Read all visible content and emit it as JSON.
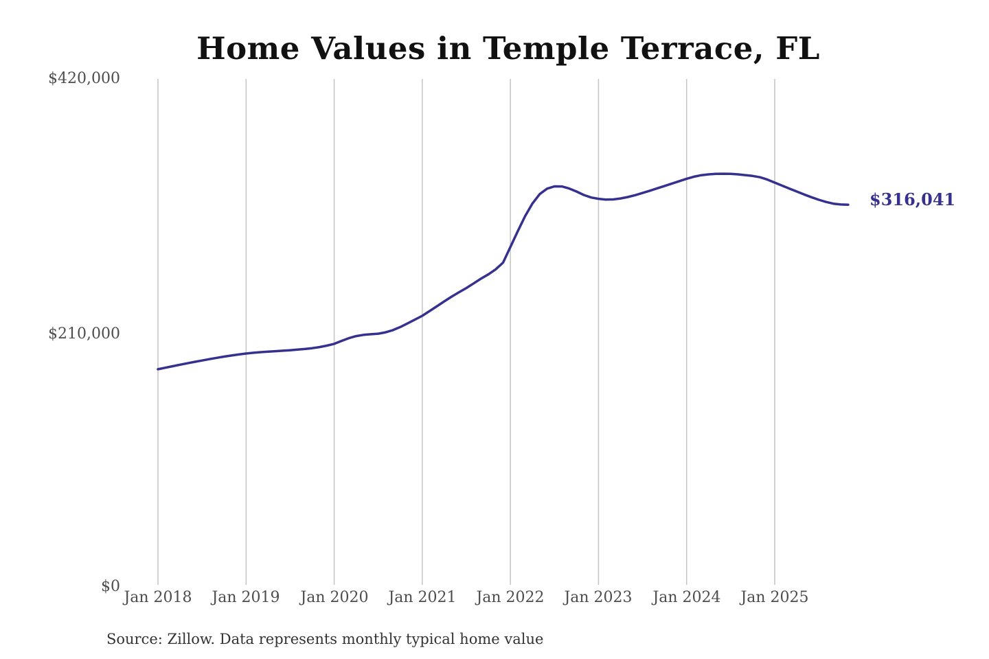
{
  "chart_data": {
    "type": "line",
    "title": "Home Values in Temple Terrace, FL",
    "xlabel": "",
    "ylabel": "",
    "ylim": [
      0,
      420000
    ],
    "grid": "vertical",
    "legend_position": "none",
    "line_color": "#36308e",
    "gridline_color": "#c4c4c4",
    "end_label": "$316,041",
    "end_value": 316041,
    "y_ticks": [
      420000,
      210000,
      0
    ],
    "y_tick_labels": [
      "$420,000",
      "$210,000",
      "$0"
    ],
    "x_tick_labels": [
      "Jan 2018",
      "Jan 2019",
      "Jan 2020",
      "Jan 2021",
      "Jan 2022",
      "Jan 2023",
      "Jan 2024",
      "Jan 2025"
    ],
    "x": [
      "2018-01",
      "2018-02",
      "2018-03",
      "2018-04",
      "2018-05",
      "2018-06",
      "2018-07",
      "2018-08",
      "2018-09",
      "2018-10",
      "2018-11",
      "2018-12",
      "2019-01",
      "2019-02",
      "2019-03",
      "2019-04",
      "2019-05",
      "2019-06",
      "2019-07",
      "2019-08",
      "2019-09",
      "2019-10",
      "2019-11",
      "2019-12",
      "2020-01",
      "2020-02",
      "2020-03",
      "2020-04",
      "2020-05",
      "2020-06",
      "2020-07",
      "2020-08",
      "2020-09",
      "2020-10",
      "2020-11",
      "2020-12",
      "2021-01",
      "2021-02",
      "2021-03",
      "2021-04",
      "2021-05",
      "2021-06",
      "2021-07",
      "2021-08",
      "2021-09",
      "2021-10",
      "2021-11",
      "2021-12",
      "2022-01",
      "2022-02",
      "2022-03",
      "2022-04",
      "2022-05",
      "2022-06",
      "2022-07",
      "2022-08",
      "2022-09",
      "2022-10",
      "2022-11",
      "2022-12",
      "2023-01",
      "2023-02",
      "2023-03",
      "2023-04",
      "2023-05",
      "2023-06",
      "2023-07",
      "2023-08",
      "2023-09",
      "2023-10",
      "2023-11",
      "2023-12",
      "2024-01",
      "2024-02",
      "2024-03",
      "2024-04",
      "2024-05",
      "2024-06",
      "2024-07",
      "2024-08",
      "2024-09",
      "2024-10",
      "2024-11",
      "2024-12",
      "2025-01",
      "2025-02",
      "2025-03",
      "2025-04",
      "2025-05",
      "2025-06",
      "2025-07",
      "2025-08",
      "2025-09",
      "2025-10",
      "2025-11"
    ],
    "series": [
      {
        "name": "Monthly typical home value",
        "values": [
          180000,
          181200,
          182500,
          183700,
          184900,
          186100,
          187200,
          188300,
          189400,
          190400,
          191300,
          192200,
          193000,
          193600,
          194100,
          194500,
          194900,
          195300,
          195700,
          196200,
          196700,
          197400,
          198300,
          199500,
          201000,
          203400,
          205700,
          207400,
          208400,
          208900,
          209400,
          210500,
          212300,
          214900,
          217900,
          221000,
          224200,
          228100,
          232100,
          236100,
          240000,
          243600,
          247100,
          251000,
          254900,
          258400,
          262600,
          268200,
          281000,
          294000,
          306500,
          317000,
          324800,
          329300,
          331200,
          331100,
          329400,
          326900,
          324100,
          322000,
          320900,
          320300,
          320400,
          321200,
          322400,
          323900,
          325700,
          327600,
          329600,
          331500,
          333500,
          335500,
          337500,
          339200,
          340400,
          341100,
          341500,
          341600,
          341500,
          341100,
          340500,
          339800,
          338700,
          336800,
          334300,
          331800,
          329300,
          326900,
          324500,
          322200,
          320100,
          318300,
          316900,
          316200,
          316041
        ]
      }
    ]
  },
  "footer": {
    "source_text": "Source: Zillow. Data represents monthly typical home value"
  },
  "colors": {
    "accent": "#36308e",
    "title": "#111111",
    "axis_text": "#4d4d4d",
    "gridline": "#c4c4c4",
    "background": "#ffffff"
  }
}
